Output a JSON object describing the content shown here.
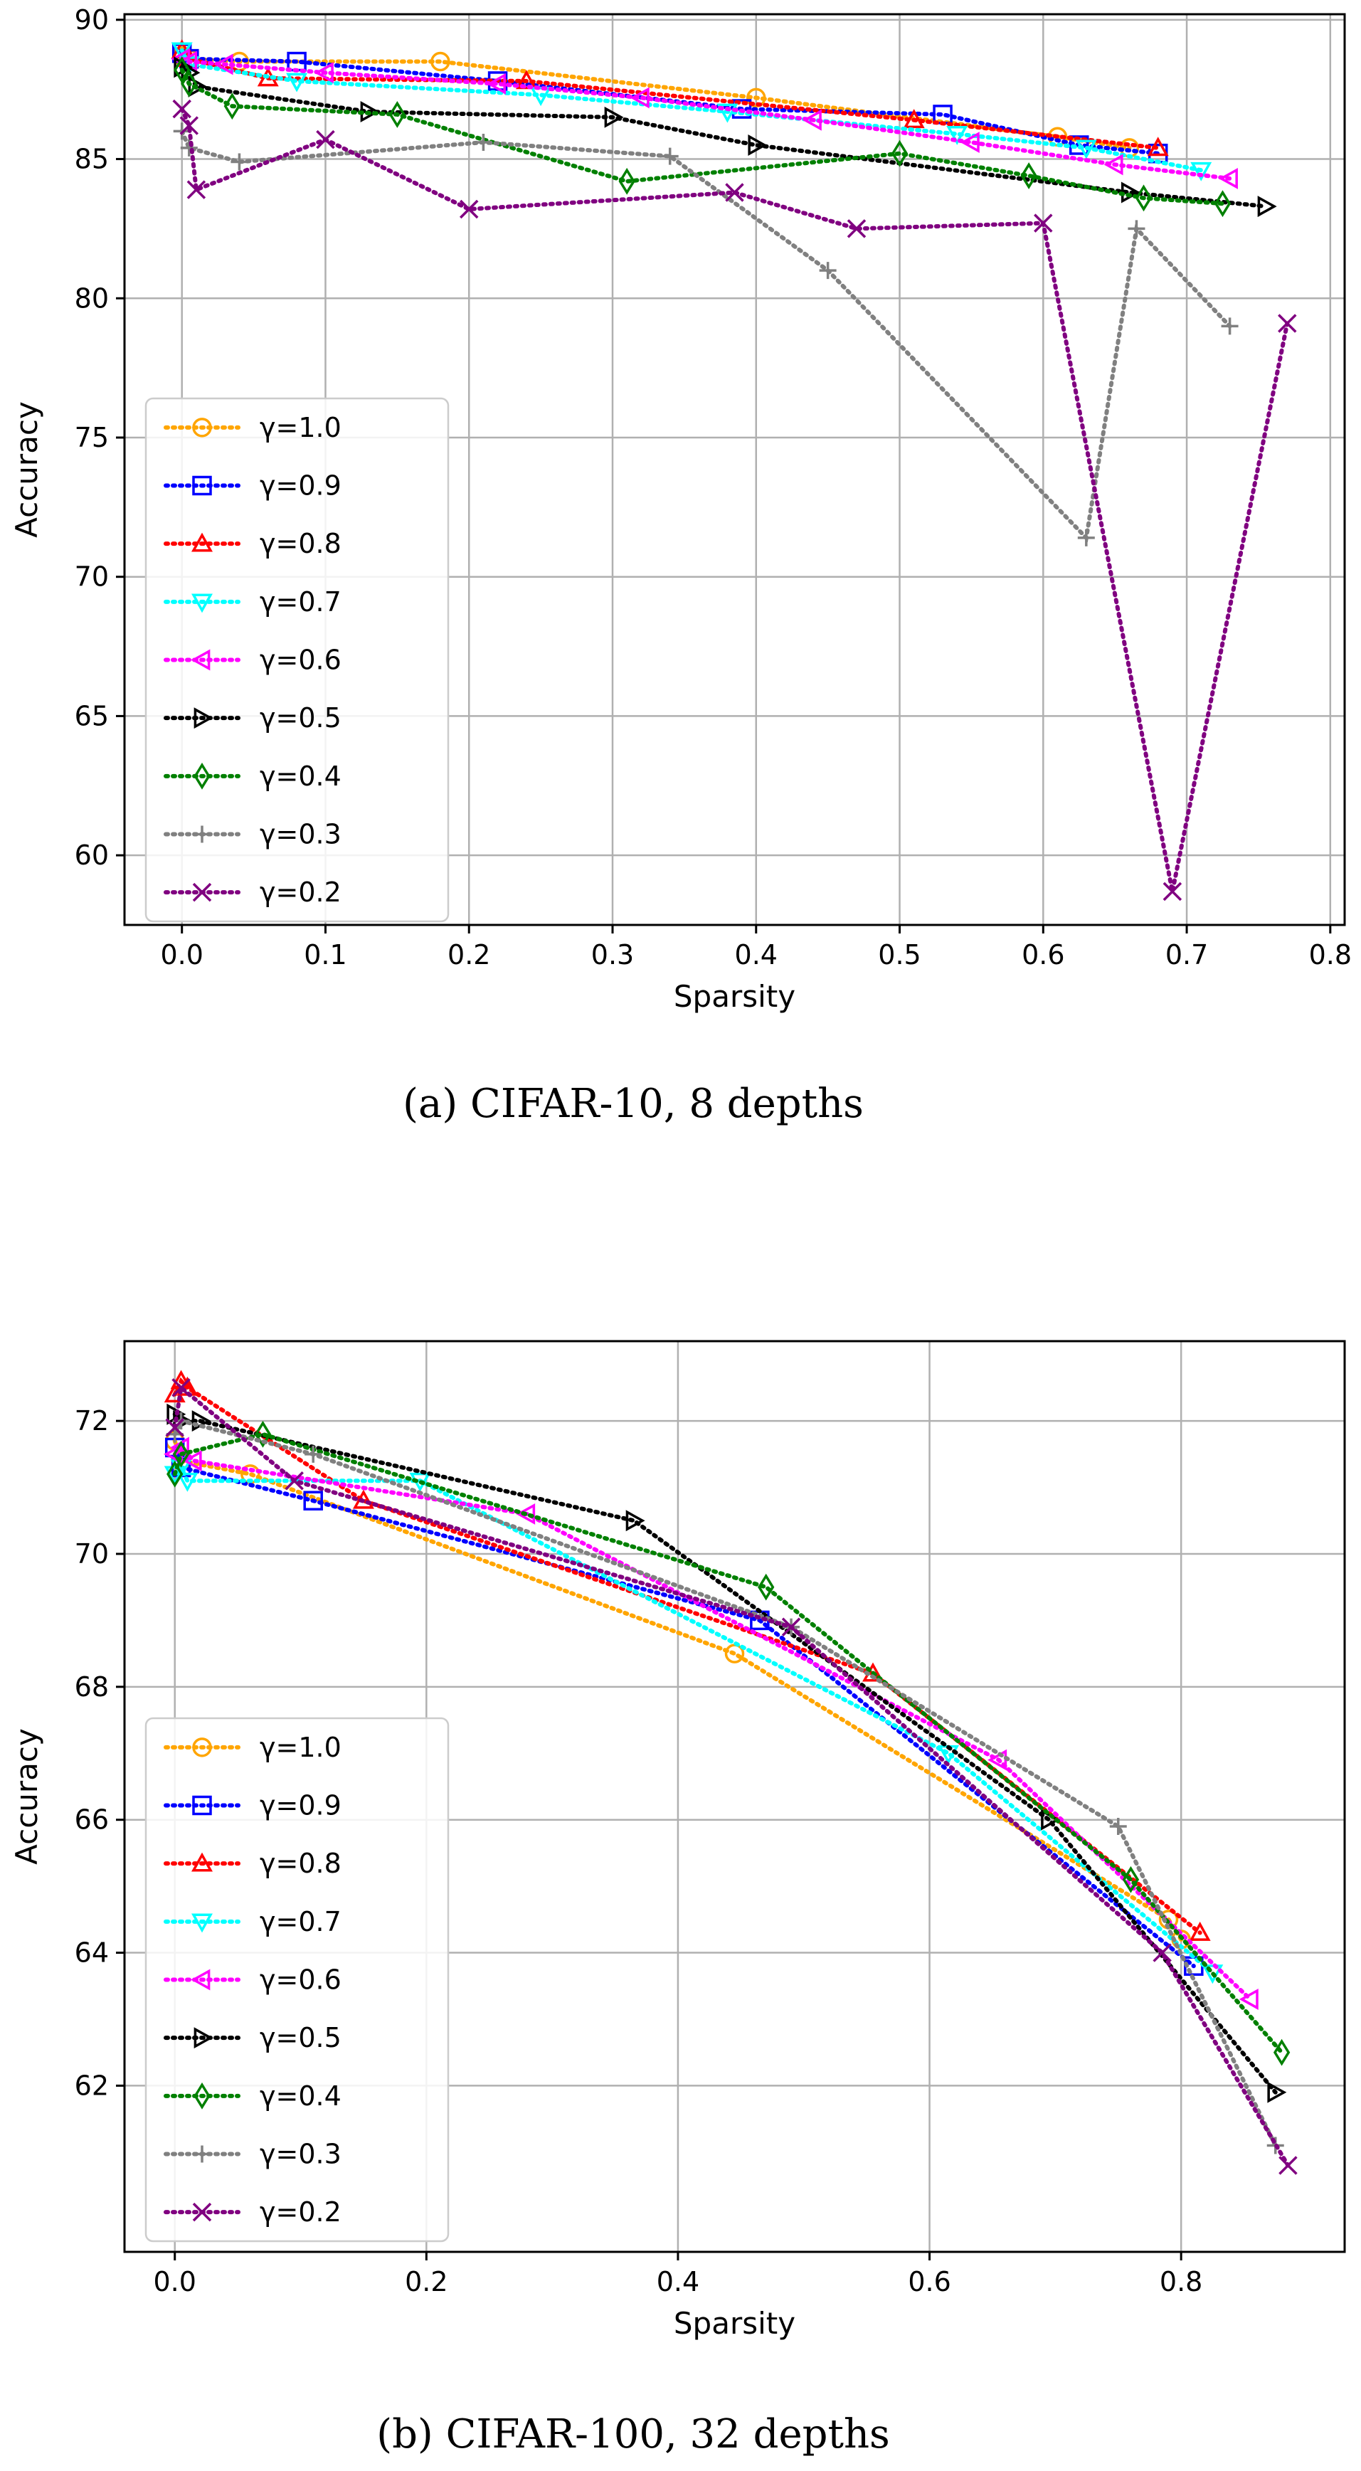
{
  "markers": {
    "1.0": "circle",
    "0.9": "square",
    "0.8": "triangle-up",
    "0.7": "triangle-down",
    "0.6": "triangle-left",
    "0.5": "triangle-right",
    "0.4": "diamond",
    "0.3": "plus",
    "0.2": "x"
  },
  "chart_data": [
    {
      "type": "line",
      "caption": "(a)  CIFAR-10, 8 depths",
      "xlabel": "Sparsity",
      "ylabel": "Accuracy",
      "xlim": [
        -0.04,
        0.81
      ],
      "ylim": [
        57.5,
        90.2
      ],
      "xticks": [
        0.0,
        0.1,
        0.2,
        0.3,
        0.4,
        0.5,
        0.6,
        0.7,
        0.8
      ],
      "xtick_labels": [
        "0.0",
        "0.1",
        "0.2",
        "0.3",
        "0.4",
        "0.5",
        "0.6",
        "0.7",
        "0.8"
      ],
      "yticks": [
        60,
        65,
        70,
        75,
        80,
        85,
        90
      ],
      "ytick_labels": [
        "60",
        "65",
        "70",
        "75",
        "80",
        "85",
        "90"
      ],
      "grid": true,
      "legend_position": "left",
      "series": [
        {
          "name": "γ=1.0",
          "color": "#FFA500",
          "x": [
            0.0,
            0.005,
            0.04,
            0.18,
            0.4,
            0.61,
            0.66
          ],
          "y": [
            88.7,
            88.6,
            88.5,
            88.5,
            87.2,
            85.8,
            85.4
          ]
        },
        {
          "name": "γ=0.9",
          "color": "#0000FF",
          "x": [
            0.0,
            0.005,
            0.08,
            0.22,
            0.39,
            0.53,
            0.625,
            0.68
          ],
          "y": [
            88.8,
            88.6,
            88.5,
            87.8,
            86.8,
            86.6,
            85.5,
            85.2
          ]
        },
        {
          "name": "γ=0.8",
          "color": "#FF0000",
          "x": [
            0.0,
            0.005,
            0.06,
            0.24,
            0.51,
            0.68
          ],
          "y": [
            88.9,
            88.6,
            87.9,
            87.8,
            86.4,
            85.4
          ]
        },
        {
          "name": "γ=0.7",
          "color": "#00FFFF",
          "x": [
            0.0,
            0.005,
            0.08,
            0.25,
            0.38,
            0.54,
            0.63,
            0.71
          ],
          "y": [
            88.9,
            88.4,
            87.8,
            87.3,
            86.7,
            85.9,
            85.4,
            84.6
          ]
        },
        {
          "name": "γ=0.6",
          "color": "#FF00FF",
          "x": [
            0.0,
            0.005,
            0.03,
            0.1,
            0.22,
            0.32,
            0.44,
            0.55,
            0.65,
            0.73
          ],
          "y": [
            88.6,
            88.5,
            88.4,
            88.1,
            87.7,
            87.2,
            86.4,
            85.6,
            84.8,
            84.3
          ]
        },
        {
          "name": "γ=0.5",
          "color": "#000000",
          "x": [
            0.0,
            0.005,
            0.01,
            0.13,
            0.3,
            0.4,
            0.66,
            0.755
          ],
          "y": [
            88.3,
            88.1,
            87.6,
            86.7,
            86.5,
            85.5,
            83.8,
            83.3
          ]
        },
        {
          "name": "γ=0.4",
          "color": "#008000",
          "x": [
            0.0,
            0.005,
            0.035,
            0.15,
            0.31,
            0.5,
            0.59,
            0.67,
            0.725
          ],
          "y": [
            88.2,
            87.7,
            86.9,
            86.6,
            84.2,
            85.2,
            84.4,
            83.6,
            83.4
          ]
        },
        {
          "name": "γ=0.3",
          "color": "#808080",
          "x": [
            0.0,
            0.005,
            0.04,
            0.21,
            0.34,
            0.45,
            0.63,
            0.665,
            0.73
          ],
          "y": [
            86.0,
            85.4,
            84.9,
            85.6,
            85.1,
            81.0,
            71.4,
            82.5,
            79.0
          ]
        },
        {
          "name": "γ=0.2",
          "color": "#800080",
          "x": [
            0.0,
            0.005,
            0.01,
            0.1,
            0.2,
            0.385,
            0.47,
            0.6,
            0.69,
            0.77
          ],
          "y": [
            86.8,
            86.2,
            83.9,
            85.7,
            83.2,
            83.8,
            82.5,
            82.7,
            58.7,
            79.1
          ]
        }
      ]
    },
    {
      "type": "line",
      "caption": "(b)  CIFAR-100, 32 depths",
      "xlabel": "Sparsity",
      "ylabel": "Accuracy",
      "xlim": [
        -0.04,
        0.93
      ],
      "ylim": [
        59.5,
        73.2
      ],
      "xticks": [
        0.0,
        0.2,
        0.4,
        0.6,
        0.8
      ],
      "xtick_labels": [
        "0.0",
        "0.2",
        "0.4",
        "0.6",
        "0.8"
      ],
      "yticks": [
        62,
        64,
        66,
        68,
        70,
        72
      ],
      "ytick_labels": [
        "62",
        "64",
        "66",
        "68",
        "70",
        "72"
      ],
      "grid": true,
      "legend_position": "left",
      "series": [
        {
          "name": "γ=1.0",
          "color": "#FFA500",
          "x": [
            0.0,
            0.005,
            0.06,
            0.445,
            0.79,
            0.8
          ],
          "y": [
            71.7,
            71.4,
            71.2,
            68.5,
            64.5,
            64.2
          ]
        },
        {
          "name": "γ=0.9",
          "color": "#0000FF",
          "x": [
            0.0,
            0.005,
            0.11,
            0.465,
            0.81
          ],
          "y": [
            71.6,
            71.3,
            70.8,
            69.0,
            63.8
          ]
        },
        {
          "name": "γ=0.8",
          "color": "#FF0000",
          "x": [
            0.0,
            0.005,
            0.01,
            0.15,
            0.555,
            0.815
          ],
          "y": [
            72.4,
            72.6,
            72.5,
            70.8,
            68.2,
            64.3
          ]
        },
        {
          "name": "γ=0.7",
          "color": "#00FFFF",
          "x": [
            0.0,
            0.005,
            0.01,
            0.195,
            0.615,
            0.825
          ],
          "y": [
            71.2,
            71.3,
            71.1,
            71.1,
            67.0,
            63.7
          ]
        },
        {
          "name": "γ=0.6",
          "color": "#FF00FF",
          "x": [
            0.0,
            0.005,
            0.015,
            0.28,
            0.655,
            0.855
          ],
          "y": [
            71.5,
            71.6,
            71.4,
            70.6,
            66.9,
            63.3
          ]
        },
        {
          "name": "γ=0.5",
          "color": "#000000",
          "x": [
            0.0,
            0.005,
            0.02,
            0.365,
            0.695,
            0.875
          ],
          "y": [
            72.1,
            72.0,
            72.0,
            70.5,
            66.0,
            61.9
          ]
        },
        {
          "name": "γ=0.4",
          "color": "#008000",
          "x": [
            0.0,
            0.005,
            0.07,
            0.47,
            0.76,
            0.88
          ],
          "y": [
            71.2,
            71.5,
            71.8,
            69.5,
            65.1,
            62.5
          ]
        },
        {
          "name": "γ=0.3",
          "color": "#808080",
          "x": [
            0.0,
            0.005,
            0.11,
            0.49,
            0.75,
            0.875
          ],
          "y": [
            71.8,
            72.0,
            71.5,
            68.9,
            65.9,
            61.1
          ]
        },
        {
          "name": "γ=0.2",
          "color": "#800080",
          "x": [
            0.0,
            0.005,
            0.095,
            0.49,
            0.785,
            0.885
          ],
          "y": [
            71.9,
            72.5,
            71.1,
            68.9,
            64.0,
            60.8
          ]
        }
      ]
    }
  ]
}
